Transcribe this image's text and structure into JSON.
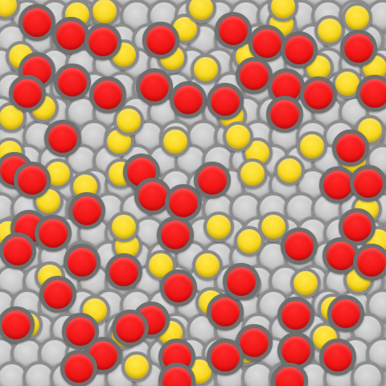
{
  "game": {
    "colors": {
      "background": "#a8a8a8",
      "gray_token": "#c8c8c8",
      "yellow_token": "#f7d51a",
      "red_token": "#f01616",
      "token_ring": "#7a7a7a"
    },
    "token_counts": {
      "red": 66,
      "yellow": 60,
      "gray": 110
    },
    "red_tokens": 66
  }
}
